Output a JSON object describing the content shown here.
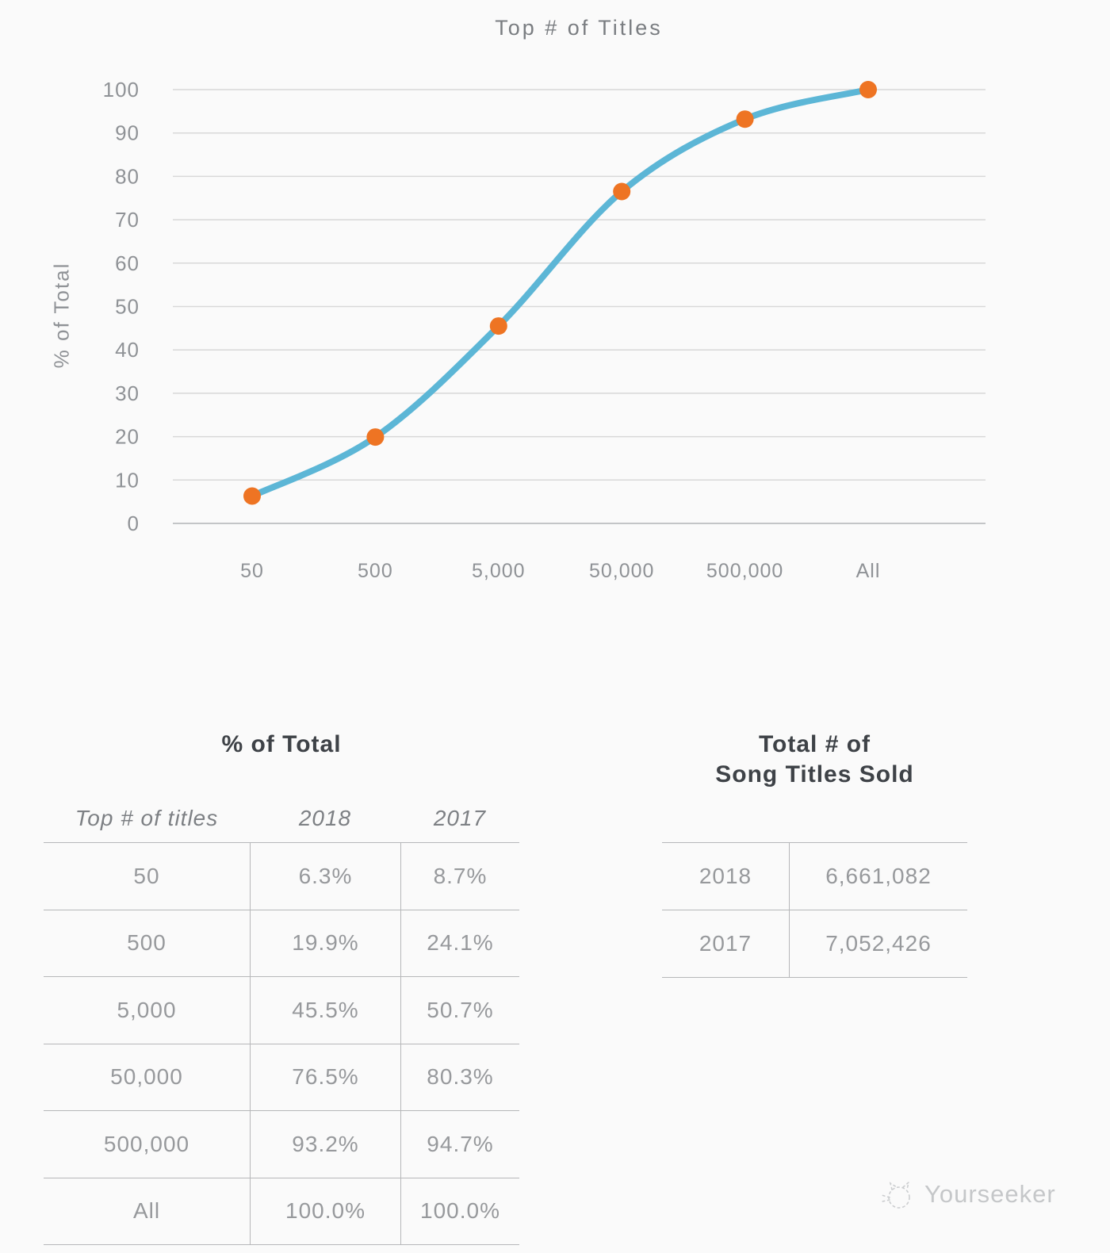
{
  "chart": {
    "title": "Top # of Titles",
    "ylabel": "% of Total"
  },
  "chart_data": {
    "type": "line",
    "title": "Top # of Titles",
    "xlabel": "",
    "ylabel": "% of Total",
    "categories": [
      "50",
      "500",
      "5,000",
      "50,000",
      "500,000",
      "All"
    ],
    "series": [
      {
        "name": "2018",
        "values": [
          6.3,
          19.9,
          45.5,
          76.5,
          93.2,
          100.0
        ]
      }
    ],
    "ylim": [
      0,
      100
    ],
    "yticks": [
      0,
      10,
      20,
      30,
      40,
      50,
      60,
      70,
      80,
      90,
      100
    ],
    "grid": "horizontal",
    "legend_position": "none",
    "marker": "circle"
  },
  "left_table": {
    "title": "% of Total",
    "columns": [
      "Top # of titles",
      "2018",
      "2017"
    ],
    "rows": [
      [
        "50",
        "6.3%",
        "8.7%"
      ],
      [
        "500",
        "19.9%",
        "24.1%"
      ],
      [
        "5,000",
        "45.5%",
        "50.7%"
      ],
      [
        "50,000",
        "76.5%",
        "80.3%"
      ],
      [
        "500,000",
        "93.2%",
        "94.7%"
      ],
      [
        "All",
        "100.0%",
        "100.0%"
      ]
    ]
  },
  "right_table": {
    "title_line1": "Total # of",
    "title_line2": "Song Titles Sold",
    "rows": [
      [
        "2018",
        "6,661,082"
      ],
      [
        "2017",
        "7,052,426"
      ]
    ]
  },
  "watermark": {
    "text": "Yourseeker",
    "icon": "cat-sketch-icon"
  },
  "colors": {
    "background": "#fafafa",
    "line": "#5cb6d6",
    "point": "#ee7423",
    "gridline": "#d8d8d8",
    "axis_line": "#c3c5c7",
    "axis_text": "#8f9296",
    "chart_title_text": "#7a7d81",
    "table_heading_text": "#3e4247",
    "table_header_text": "#7d8084",
    "table_cell_text": "#97999c",
    "table_border": "#b6b7b9",
    "watermark": "#c7c9cb"
  }
}
